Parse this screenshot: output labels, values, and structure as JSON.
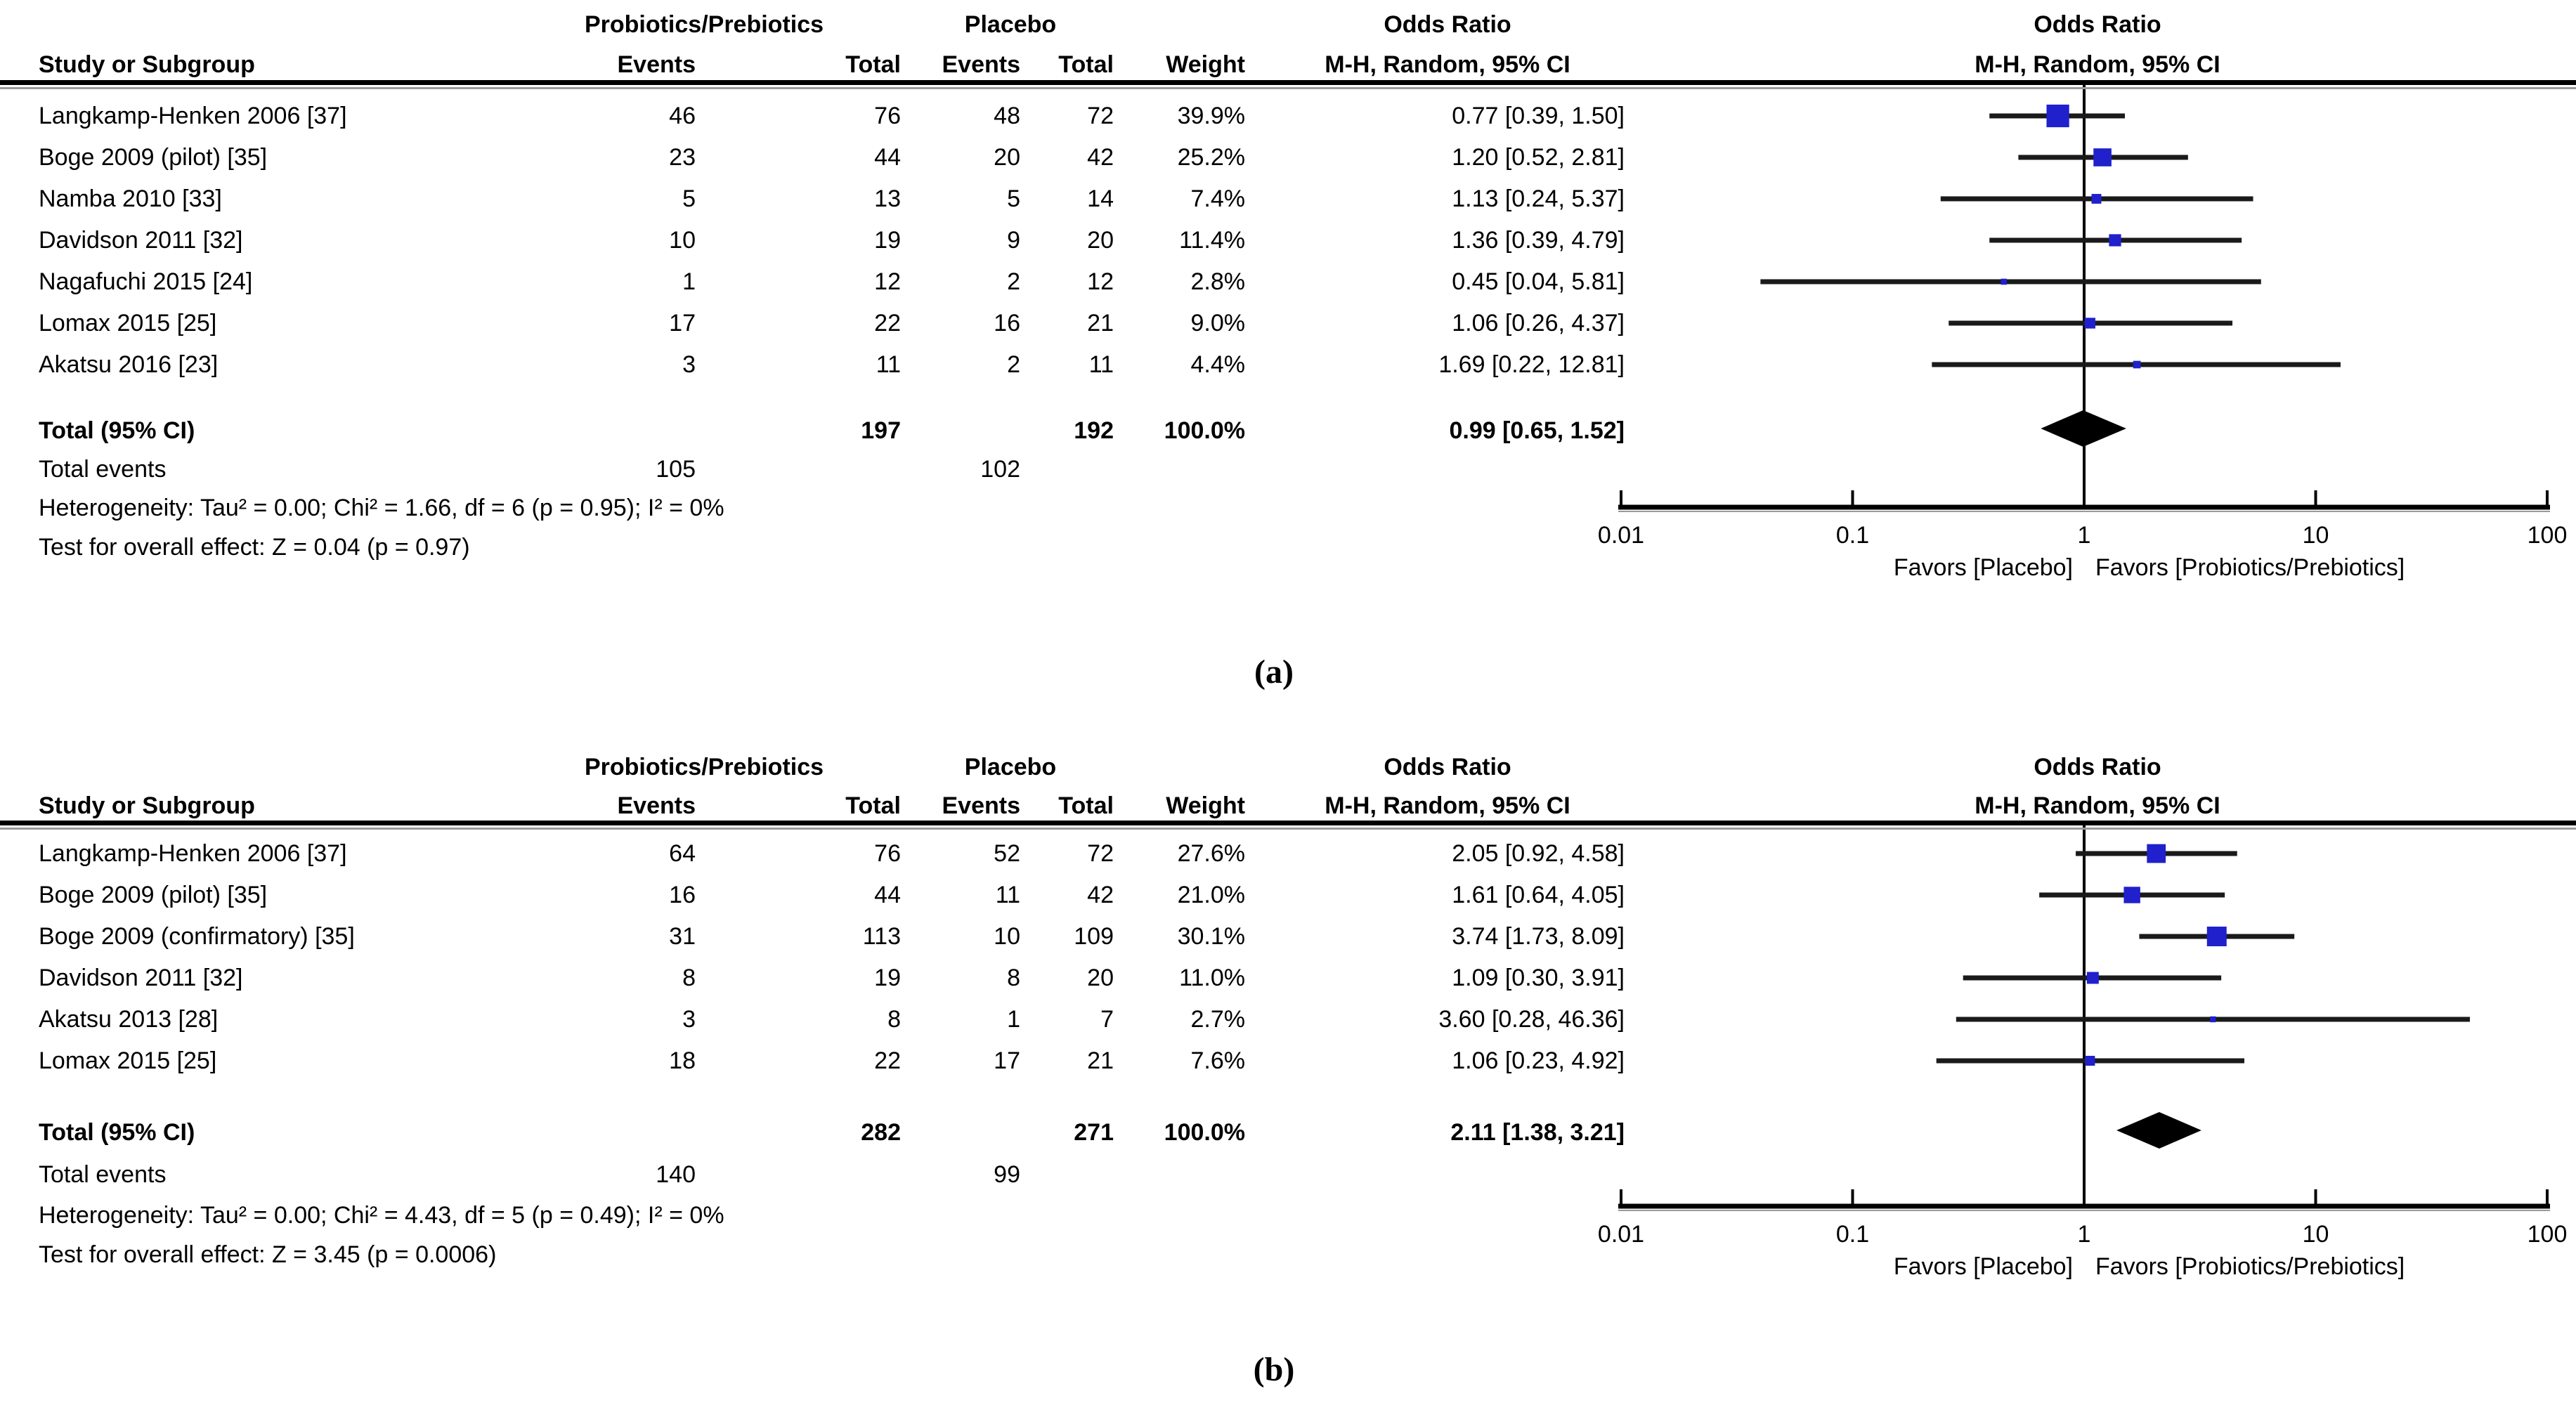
{
  "colors": {
    "marker_square": "#2020cc",
    "ci_line": "#1a1a1a",
    "diamond": "#000000",
    "axis": "#000000",
    "rule_shadow": "#9a9a9a"
  },
  "headers": {
    "group1": "Probiotics/Prebiotics",
    "group2": "Placebo",
    "study": "Study or Subgroup",
    "events": "Events",
    "total": "Total",
    "weight": "Weight",
    "or_line1": "Odds Ratio",
    "or_line2": "M-H, Random, 95% CI",
    "plot_line1": "Odds Ratio",
    "plot_line2": "M-H, Random, 95% CI"
  },
  "axis": {
    "tick_labels": [
      "0.01",
      "0.1",
      "1",
      "10",
      "100"
    ],
    "tick_values": [
      0.01,
      0.1,
      1,
      10,
      100
    ],
    "favors_left": "Favors [Placebo]",
    "favors_right": "Favors [Probiotics/Prebiotics]"
  },
  "chart_data": [
    {
      "type": "scatter",
      "subtype": "forest-plot",
      "panel_label": "(a)",
      "title": "Odds Ratio",
      "subtitle": "M-H, Random, 95% CI",
      "x_scale": "log10",
      "xlim": [
        0.01,
        100
      ],
      "x_ticks": [
        0.01,
        0.1,
        1,
        10,
        100
      ],
      "studies": [
        {
          "name": "Langkamp-Henken  2006 [37]",
          "events_treat": "46",
          "total_treat": "76",
          "events_ctrl": "48",
          "total_ctrl": "72",
          "weight": "39.9%",
          "weight_pct": 39.9,
          "or": 0.77,
          "ci_low": 0.39,
          "ci_high": 1.5,
          "or_label": "0.77 [0.39, 1.50]"
        },
        {
          "name": "Boge 2009 (pilot) [35]",
          "events_treat": "23",
          "total_treat": "44",
          "events_ctrl": "20",
          "total_ctrl": "42",
          "weight": "25.2%",
          "weight_pct": 25.2,
          "or": 1.2,
          "ci_low": 0.52,
          "ci_high": 2.81,
          "or_label": "1.20 [0.52, 2.81]"
        },
        {
          "name": "Namba 2010 [33]",
          "events_treat": "5",
          "total_treat": "13",
          "events_ctrl": "5",
          "total_ctrl": "14",
          "weight": "7.4%",
          "weight_pct": 7.4,
          "or": 1.13,
          "ci_low": 0.24,
          "ci_high": 5.37,
          "or_label": "1.13 [0.24, 5.37]"
        },
        {
          "name": "Davidson 2011 [32]",
          "events_treat": "10",
          "total_treat": "19",
          "events_ctrl": "9",
          "total_ctrl": "20",
          "weight": "11.4%",
          "weight_pct": 11.4,
          "or": 1.36,
          "ci_low": 0.39,
          "ci_high": 4.79,
          "or_label": "1.36 [0.39, 4.79]"
        },
        {
          "name": "Nagafuchi 2015 [24]",
          "events_treat": "1",
          "total_treat": "12",
          "events_ctrl": "2",
          "total_ctrl": "12",
          "weight": "2.8%",
          "weight_pct": 2.8,
          "or": 0.45,
          "ci_low": 0.04,
          "ci_high": 5.81,
          "or_label": "0.45 [0.04, 5.81]"
        },
        {
          "name": "Lomax 2015 [25]",
          "events_treat": "17",
          "total_treat": "22",
          "events_ctrl": "16",
          "total_ctrl": "21",
          "weight": "9.0%",
          "weight_pct": 9.0,
          "or": 1.06,
          "ci_low": 0.26,
          "ci_high": 4.37,
          "or_label": "1.06 [0.26, 4.37]"
        },
        {
          "name": "Akatsu 2016 [23]",
          "events_treat": "3",
          "total_treat": "11",
          "events_ctrl": "2",
          "total_ctrl": "11",
          "weight": "4.4%",
          "weight_pct": 4.4,
          "or": 1.69,
          "ci_low": 0.22,
          "ci_high": 12.81,
          "or_label": "1.69 [0.22, 12.81]"
        }
      ],
      "total": {
        "label": "Total (95% CI)",
        "total_treat": "197",
        "total_ctrl": "192",
        "weight": "100.0%",
        "or": 0.99,
        "ci_low": 0.65,
        "ci_high": 1.52,
        "or_label": "0.99 [0.65, 1.52]"
      },
      "total_events": {
        "label": "Total events",
        "treat": "105",
        "ctrl": "102"
      },
      "heterogeneity": "Heterogeneity: Tau² = 0.00; Chi² = 1.66, df = 6 (p = 0.95); I² = 0%",
      "overall_effect": "Test for overall effect: Z = 0.04 (p = 0.97)"
    },
    {
      "type": "scatter",
      "subtype": "forest-plot",
      "panel_label": "(b)",
      "title": "Odds Ratio",
      "subtitle": "M-H, Random, 95% CI",
      "x_scale": "log10",
      "xlim": [
        0.01,
        100
      ],
      "x_ticks": [
        0.01,
        0.1,
        1,
        10,
        100
      ],
      "studies": [
        {
          "name": "Langkamp-Henken  2006 [37]",
          "events_treat": "64",
          "total_treat": "76",
          "events_ctrl": "52",
          "total_ctrl": "72",
          "weight": "27.6%",
          "weight_pct": 27.6,
          "or": 2.05,
          "ci_low": 0.92,
          "ci_high": 4.58,
          "or_label": "2.05 [0.92, 4.58]"
        },
        {
          "name": "Boge 2009 (pilot) [35]",
          "events_treat": "16",
          "total_treat": "44",
          "events_ctrl": "11",
          "total_ctrl": "42",
          "weight": "21.0%",
          "weight_pct": 21.0,
          "or": 1.61,
          "ci_low": 0.64,
          "ci_high": 4.05,
          "or_label": "1.61 [0.64, 4.05]"
        },
        {
          "name": "Boge 2009 (confirmatory) [35]",
          "events_treat": "31",
          "total_treat": "113",
          "events_ctrl": "10",
          "total_ctrl": "109",
          "weight": "30.1%",
          "weight_pct": 30.1,
          "or": 3.74,
          "ci_low": 1.73,
          "ci_high": 8.09,
          "or_label": "3.74 [1.73, 8.09]"
        },
        {
          "name": "Davidson 2011 [32]",
          "events_treat": "8",
          "total_treat": "19",
          "events_ctrl": "8",
          "total_ctrl": "20",
          "weight": "11.0%",
          "weight_pct": 11.0,
          "or": 1.09,
          "ci_low": 0.3,
          "ci_high": 3.91,
          "or_label": "1.09 [0.30, 3.91]"
        },
        {
          "name": "Akatsu 2013 [28]",
          "events_treat": "3",
          "total_treat": "8",
          "events_ctrl": "1",
          "total_ctrl": "7",
          "weight": "2.7%",
          "weight_pct": 2.7,
          "or": 3.6,
          "ci_low": 0.28,
          "ci_high": 46.36,
          "or_label": "3.60 [0.28, 46.36]"
        },
        {
          "name": "Lomax 2015 [25]",
          "events_treat": "18",
          "total_treat": "22",
          "events_ctrl": "17",
          "total_ctrl": "21",
          "weight": "7.6%",
          "weight_pct": 7.6,
          "or": 1.06,
          "ci_low": 0.23,
          "ci_high": 4.92,
          "or_label": "1.06 [0.23, 4.92]"
        }
      ],
      "total": {
        "label": "Total (95% CI)",
        "total_treat": "282",
        "total_ctrl": "271",
        "weight": "100.0%",
        "or": 2.11,
        "ci_low": 1.38,
        "ci_high": 3.21,
        "or_label": "2.11 [1.38, 3.21]"
      },
      "total_events": {
        "label": "Total events",
        "treat": "140",
        "ctrl": "99"
      },
      "heterogeneity": "Heterogeneity: Tau² = 0.00; Chi² = 4.43, df = 5 (p = 0.49); I² = 0%",
      "overall_effect": "Test for overall effect: Z = 3.45 (p = 0.0006)"
    }
  ]
}
